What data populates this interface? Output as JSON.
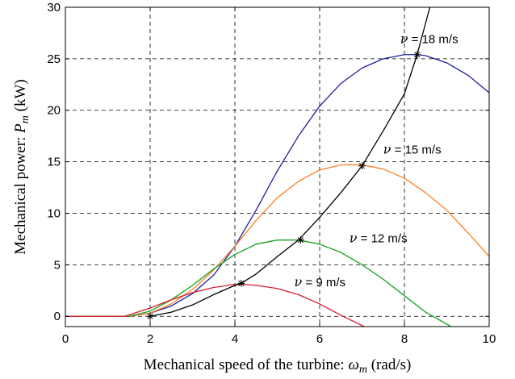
{
  "chart_data": {
    "type": "line",
    "xlabel_text": "Mechanical speed of the turbine: ",
    "xlabel_symbol": "ω",
    "xlabel_subscript": "m",
    "xlabel_unit": " (rad/s)",
    "ylabel_text": "Mechanical power: ",
    "ylabel_symbol": "P",
    "ylabel_subscript": "m",
    "ylabel_unit": " (kW)",
    "xlim": [
      0,
      10
    ],
    "ylim": [
      -1,
      30
    ],
    "xticks": [
      "0",
      "2",
      "4",
      "6",
      "8",
      "10"
    ],
    "yticks": [
      "0",
      "5",
      "10",
      "15",
      "20",
      "25",
      "30"
    ],
    "grid": true,
    "annotations": [
      {
        "symbol": "ν",
        "text": " = 18 m/s",
        "x": 7.9,
        "y": 26.5
      },
      {
        "symbol": "ν",
        "text": " = 15 m/s",
        "x": 7.5,
        "y": 15.8
      },
      {
        "symbol": "ν",
        "text": " = 12 m/s",
        "x": 6.7,
        "y": 7.2
      },
      {
        "symbol": "ν",
        "text": " = 9 m/s",
        "x": 5.4,
        "y": 2.9
      }
    ],
    "series": [
      {
        "color": "#1f1f9e",
        "x": [
          0,
          1,
          1.5,
          2,
          2.5,
          3,
          3.5,
          4,
          4.5,
          5,
          5.5,
          6,
          6.5,
          7,
          7.5,
          8,
          8.3,
          8.5,
          9,
          9.5,
          10
        ],
        "y": [
          0,
          0,
          0,
          0.3,
          1.0,
          2.2,
          4.0,
          6.8,
          10.3,
          14.1,
          17.5,
          20.4,
          22.6,
          24.1,
          25.0,
          25.4,
          25.4,
          25.3,
          24.6,
          23.4,
          21.7
        ]
      },
      {
        "color": "#ff7f24",
        "x": [
          0,
          1,
          1.5,
          2,
          2.5,
          3,
          3.5,
          4,
          4.5,
          5,
          5.5,
          6,
          6.5,
          7,
          7.5,
          8,
          8.5,
          9,
          9.5,
          10
        ],
        "y": [
          0,
          0,
          0,
          0.3,
          1.2,
          2.6,
          4.5,
          6.8,
          9.3,
          11.5,
          13.1,
          14.2,
          14.7,
          14.7,
          14.3,
          13.4,
          12.0,
          10.3,
          8.1,
          5.8
        ]
      },
      {
        "color": "#16a01a",
        "x": [
          0,
          1,
          1.5,
          2,
          2.5,
          3,
          3.5,
          4,
          4.5,
          5,
          5.5,
          6,
          6.5,
          7,
          7.5,
          8,
          8.5,
          9.1
        ],
        "y": [
          0,
          0,
          0,
          0.5,
          1.6,
          3.0,
          4.6,
          6.0,
          7.0,
          7.4,
          7.4,
          7.0,
          6.2,
          5.0,
          3.6,
          2.0,
          0.4,
          -1
        ]
      },
      {
        "color": "#dd1c2c",
        "x": [
          0,
          1,
          1.4,
          2,
          2.5,
          3,
          3.5,
          4,
          4.2,
          4.5,
          5,
          5.5,
          6,
          6.5,
          7.05
        ],
        "y": [
          0,
          0,
          0,
          0.8,
          1.6,
          2.3,
          2.8,
          3.1,
          3.1,
          3.0,
          2.7,
          2.1,
          1.2,
          0.1,
          -1
        ]
      },
      {
        "color": "#000000",
        "x": [
          2,
          2.5,
          3,
          3.5,
          4,
          4.15,
          4.5,
          5,
          5.5,
          6,
          6.5,
          7,
          7.5,
          8,
          8.3,
          8.6
        ],
        "y": [
          0,
          0.4,
          1.1,
          2.1,
          3.0,
          3.2,
          4.1,
          5.8,
          7.4,
          9.6,
          12.0,
          14.6,
          18.0,
          21.6,
          25.4,
          30
        ]
      }
    ],
    "markers": {
      "x": [
        2,
        4.15,
        5.55,
        7.0,
        8.3
      ],
      "y": [
        0,
        3.2,
        7.4,
        14.6,
        25.4
      ]
    }
  }
}
